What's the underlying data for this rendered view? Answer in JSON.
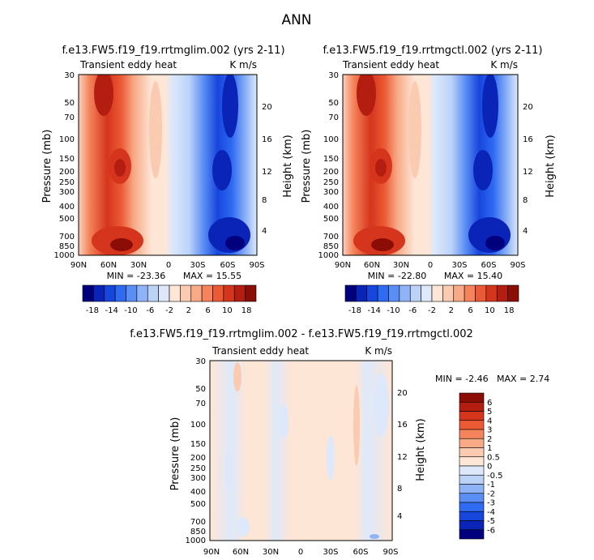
{
  "chart_data": {
    "type": "contour",
    "title": "ANN",
    "panels": [
      {
        "id": "left",
        "title": "f.e13.FW5.f19_f19.rrtmglim.002 (yrs 2-11)",
        "subtitle_left": "Transient eddy heat",
        "subtitle_right": "K m/s",
        "ylabel": "Pressure (mb)",
        "ylabel_right": "Height (km)",
        "xticks": [
          "90N",
          "60N",
          "30N",
          "0",
          "30S",
          "60S",
          "90S"
        ],
        "yticks": [
          "30",
          "50",
          "70",
          "100",
          "150",
          "200",
          "250",
          "300",
          "400",
          "500",
          "700",
          "850",
          "1000"
        ],
        "height_ticks": [
          "20",
          "16",
          "12",
          "8",
          "4"
        ],
        "min_label": "MIN = -23.36",
        "max_label": "MAX = 15.55",
        "min": -23.36,
        "max": 15.55
      },
      {
        "id": "right",
        "title": "f.e13.FW5.f19_f19.rrtmgctl.002 (yrs 2-11)",
        "subtitle_left": "Transient eddy heat",
        "subtitle_right": "K m/s",
        "ylabel": "Pressure (mb)",
        "ylabel_right": "Height (km)",
        "xticks": [
          "90N",
          "60N",
          "30N",
          "0",
          "30S",
          "60S",
          "90S"
        ],
        "yticks": [
          "30",
          "50",
          "70",
          "100",
          "150",
          "200",
          "250",
          "300",
          "400",
          "500",
          "700",
          "850",
          "1000"
        ],
        "height_ticks": [
          "20",
          "16",
          "12",
          "8",
          "4"
        ],
        "min_label": "MIN = -22.80",
        "max_label": "MAX = 15.40",
        "min": -22.8,
        "max": 15.4
      },
      {
        "id": "diff",
        "title": "f.e13.FW5.f19_f19.rrtmglim.002 - f.e13.FW5.f19_f19.rrtmgctl.002",
        "subtitle_left": "Transient eddy heat",
        "subtitle_right": "K m/s",
        "ylabel": "Pressure (mb)",
        "ylabel_right": "Height (km)",
        "xticks": [
          "90N",
          "60N",
          "30N",
          "0",
          "30S",
          "60S",
          "90S"
        ],
        "yticks": [
          "30",
          "50",
          "70",
          "100",
          "150",
          "200",
          "250",
          "300",
          "400",
          "500",
          "700",
          "850",
          "1000"
        ],
        "height_ticks": [
          "20",
          "16",
          "12",
          "8",
          "4"
        ],
        "min_label": "MIN = -2.46",
        "max_label": "MAX = 2.74",
        "min": -2.46,
        "max": 2.74
      }
    ],
    "main_colorbar": {
      "labels": [
        "-18",
        "-14",
        "-10",
        "-6",
        "-2",
        "2",
        "6",
        "10",
        "18"
      ],
      "colors": [
        "#00007f",
        "#0b24b8",
        "#1746dd",
        "#2e6af2",
        "#5b8ef5",
        "#8fb3f7",
        "#bcd3f8",
        "#dde9fa",
        "#fde6d6",
        "#fbcbb1",
        "#f8a985",
        "#f5845c",
        "#ec5a35",
        "#d5351c",
        "#b31e10",
        "#8c0c06"
      ]
    },
    "diff_colorbar": {
      "labels": [
        "6",
        "5",
        "4",
        "3",
        "2",
        "1",
        "0.5",
        "0",
        "-0.5",
        "-1",
        "-2",
        "-3",
        "-4",
        "-5",
        "-6"
      ],
      "colors": [
        "#8c0c06",
        "#b31e10",
        "#d5351c",
        "#ec5a35",
        "#f5845c",
        "#f8a985",
        "#fbcbb1",
        "#fde6d6",
        "#dde9fa",
        "#bcd3f8",
        "#8fb3f7",
        "#5b8ef5",
        "#2e6af2",
        "#1746dd",
        "#0b24b8",
        "#00007f"
      ]
    }
  }
}
